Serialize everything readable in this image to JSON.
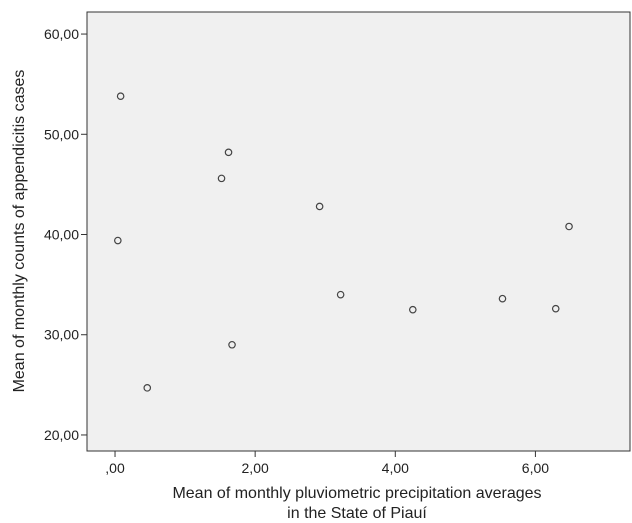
{
  "chart_data": {
    "type": "scatter",
    "title": "",
    "xlabel_lines": [
      "Mean of monthly pluviometric precipitation averages",
      "in the State of Piauí"
    ],
    "ylabel": "Mean of monthly counts of appendicitis cases",
    "xlim": [
      -0.4,
      7.35
    ],
    "ylim": [
      18.4,
      62.2
    ],
    "x_ticks": [
      {
        "value": 0,
        "label": ",00"
      },
      {
        "value": 2,
        "label": "2,00"
      },
      {
        "value": 4,
        "label": "4,00"
      },
      {
        "value": 6,
        "label": "6,00"
      }
    ],
    "y_ticks": [
      {
        "value": 20,
        "label": "20,00"
      },
      {
        "value": 30,
        "label": "30,00"
      },
      {
        "value": 40,
        "label": "40,00"
      },
      {
        "value": 50,
        "label": "50,00"
      },
      {
        "value": 60,
        "label": "60,00"
      }
    ],
    "grid": false,
    "legend": false,
    "plot_background": "#f0f0f0",
    "marker_color": "#444444",
    "points": [
      {
        "x": 0.08,
        "y": 53.8
      },
      {
        "x": 0.04,
        "y": 39.4
      },
      {
        "x": 0.46,
        "y": 24.7
      },
      {
        "x": 1.52,
        "y": 45.6
      },
      {
        "x": 1.62,
        "y": 48.2
      },
      {
        "x": 1.67,
        "y": 29.0
      },
      {
        "x": 2.92,
        "y": 42.8
      },
      {
        "x": 3.22,
        "y": 34.0
      },
      {
        "x": 4.25,
        "y": 32.5
      },
      {
        "x": 5.53,
        "y": 33.6
      },
      {
        "x": 6.29,
        "y": 32.6
      },
      {
        "x": 6.48,
        "y": 40.8
      }
    ]
  }
}
